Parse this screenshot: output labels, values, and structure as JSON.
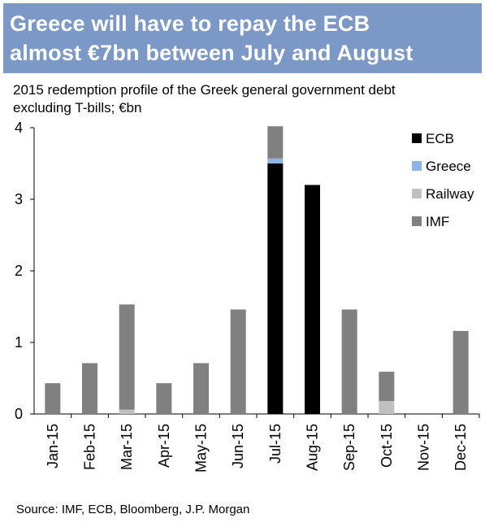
{
  "header": {
    "title_line1": "Greece will have to repay the ECB",
    "title_line2": "almost €7bn between July and August"
  },
  "subtitle_line1": "2015 redemption profile of the Greek general government debt",
  "subtitle_line2": "excluding T-bills; €bn",
  "source": "Source: IMF, ECB, Bloomberg, J.P. Morgan",
  "colors": {
    "title_bg": "#7b98c6",
    "ECB": "#000000",
    "Greece": "#8db4e2",
    "Railway": "#c0c0c0",
    "IMF": "#808080"
  },
  "chart_data": {
    "type": "bar",
    "stacked": true,
    "categories": [
      "Jan-15",
      "Feb-15",
      "Mar-15",
      "Apr-15",
      "May-15",
      "Jun-15",
      "Jul-15",
      "Aug-15",
      "Sep-15",
      "Oct-15",
      "Nov-15",
      "Dec-15"
    ],
    "series": [
      {
        "name": "ECB",
        "values": [
          0,
          0,
          0,
          0,
          0,
          0,
          3.5,
          3.2,
          0,
          0,
          0,
          0
        ]
      },
      {
        "name": "Greece",
        "values": [
          0,
          0,
          0,
          0,
          0,
          0,
          0.07,
          0,
          0,
          0,
          0,
          0
        ]
      },
      {
        "name": "Railway",
        "values": [
          0,
          0,
          0.06,
          0,
          0,
          0,
          0,
          0,
          0,
          0.18,
          0,
          0
        ]
      },
      {
        "name": "IMF",
        "values": [
          0.43,
          0.71,
          1.47,
          0.43,
          0.71,
          1.46,
          0.45,
          0,
          1.46,
          0.41,
          0,
          1.16
        ]
      }
    ],
    "ylim": [
      0,
      4
    ],
    "yticks": [
      "0",
      "1",
      "2",
      "3",
      "4"
    ],
    "legend_position": "top-right",
    "grid": false
  }
}
